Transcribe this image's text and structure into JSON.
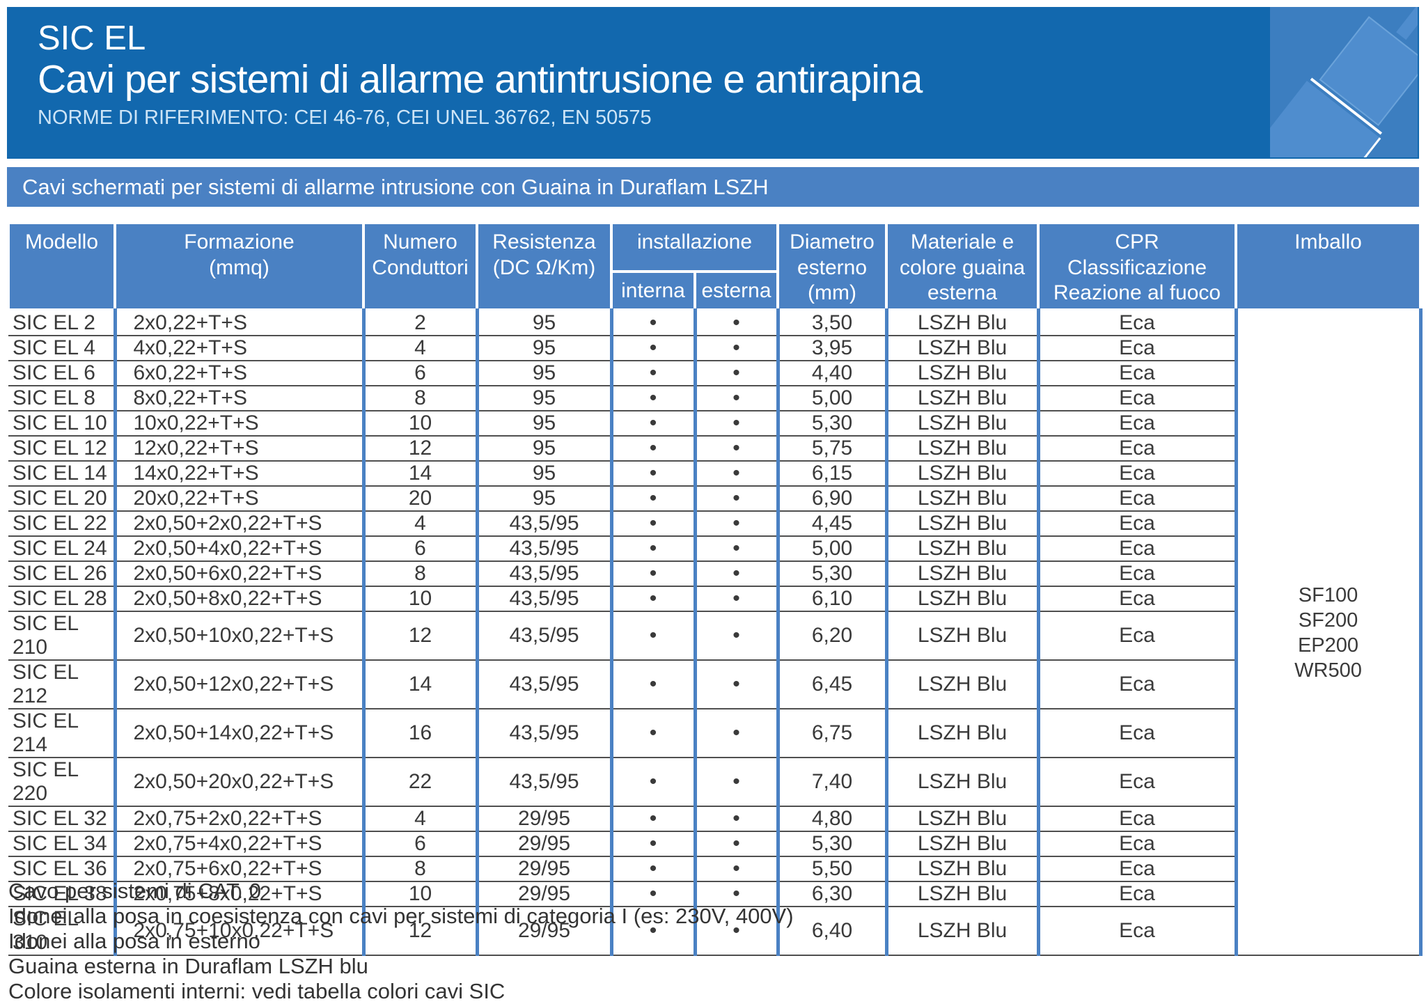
{
  "header": {
    "product": "SIC EL",
    "title": "Cavi per sistemi di allarme antintrusione e antirapina",
    "norms": "NORME DI RIFERIMENTO: CEI 46-76, CEI UNEL 36762, EN 50575"
  },
  "subheader": "Cavi schermati per sistemi di allarme intrusione con Guaina in Duraflam LSZH",
  "table": {
    "columns": {
      "modello": "Modello",
      "formazione": "Formazione\n(mmq)",
      "numero": "Numero\nConduttori",
      "resistenza": "Resistenza\n(DC Ω/Km)",
      "installazione": "installazione",
      "interna": "interna",
      "esterna": "esterna",
      "diametro": "Diametro\nesterno\n(mm)",
      "materiale": "Materiale e\ncolore guaina\nesterna",
      "cpr": "CPR\nClassificazione\nReazione al fuoco",
      "imballo": "Imballo"
    },
    "rows": [
      {
        "model": "SIC EL 2",
        "form": "2x0,22+T+S",
        "num": "2",
        "res": "95",
        "interna": "•",
        "esterna": "•",
        "diam": "3,50",
        "guaina": "LSZH Blu",
        "cpr": "Eca"
      },
      {
        "model": "SIC EL 4",
        "form": "4x0,22+T+S",
        "num": "4",
        "res": "95",
        "interna": "•",
        "esterna": "•",
        "diam": "3,95",
        "guaina": "LSZH Blu",
        "cpr": "Eca"
      },
      {
        "model": "SIC EL 6",
        "form": "6x0,22+T+S",
        "num": "6",
        "res": "95",
        "interna": "•",
        "esterna": "•",
        "diam": "4,40",
        "guaina": "LSZH Blu",
        "cpr": "Eca"
      },
      {
        "model": "SIC EL 8",
        "form": "8x0,22+T+S",
        "num": "8",
        "res": "95",
        "interna": "•",
        "esterna": "•",
        "diam": "5,00",
        "guaina": "LSZH Blu",
        "cpr": "Eca"
      },
      {
        "model": "SIC EL 10",
        "form": "10x0,22+T+S",
        "num": "10",
        "res": "95",
        "interna": "•",
        "esterna": "•",
        "diam": "5,30",
        "guaina": "LSZH Blu",
        "cpr": "Eca"
      },
      {
        "model": "SIC EL 12",
        "form": "12x0,22+T+S",
        "num": "12",
        "res": "95",
        "interna": "•",
        "esterna": "•",
        "diam": "5,75",
        "guaina": "LSZH Blu",
        "cpr": "Eca"
      },
      {
        "model": "SIC EL 14",
        "form": "14x0,22+T+S",
        "num": "14",
        "res": "95",
        "interna": "•",
        "esterna": "•",
        "diam": "6,15",
        "guaina": "LSZH Blu",
        "cpr": "Eca"
      },
      {
        "model": "SIC EL 20",
        "form": "20x0,22+T+S",
        "num": "20",
        "res": "95",
        "interna": "•",
        "esterna": "•",
        "diam": "6,90",
        "guaina": "LSZH Blu",
        "cpr": "Eca"
      },
      {
        "model": "SIC EL 22",
        "form": "2x0,50+2x0,22+T+S",
        "num": "4",
        "res": "43,5/95",
        "interna": "•",
        "esterna": "•",
        "diam": "4,45",
        "guaina": "LSZH Blu",
        "cpr": "Eca"
      },
      {
        "model": "SIC EL 24",
        "form": "2x0,50+4x0,22+T+S",
        "num": "6",
        "res": "43,5/95",
        "interna": "•",
        "esterna": "•",
        "diam": "5,00",
        "guaina": "LSZH Blu",
        "cpr": "Eca"
      },
      {
        "model": "SIC EL 26",
        "form": "2x0,50+6x0,22+T+S",
        "num": "8",
        "res": "43,5/95",
        "interna": "•",
        "esterna": "•",
        "diam": "5,30",
        "guaina": "LSZH Blu",
        "cpr": "Eca"
      },
      {
        "model": "SIC EL 28",
        "form": "2x0,50+8x0,22+T+S",
        "num": "10",
        "res": "43,5/95",
        "interna": "•",
        "esterna": "•",
        "diam": "6,10",
        "guaina": "LSZH Blu",
        "cpr": "Eca"
      },
      {
        "model": "SIC EL 210",
        "form": "2x0,50+10x0,22+T+S",
        "num": "12",
        "res": "43,5/95",
        "interna": "•",
        "esterna": "•",
        "diam": "6,20",
        "guaina": "LSZH Blu",
        "cpr": "Eca"
      },
      {
        "model": "SIC EL 212",
        "form": "2x0,50+12x0,22+T+S",
        "num": "14",
        "res": "43,5/95",
        "interna": "•",
        "esterna": "•",
        "diam": "6,45",
        "guaina": "LSZH Blu",
        "cpr": "Eca"
      },
      {
        "model": "SIC EL 214",
        "form": "2x0,50+14x0,22+T+S",
        "num": "16",
        "res": "43,5/95",
        "interna": "•",
        "esterna": "•",
        "diam": "6,75",
        "guaina": "LSZH Blu",
        "cpr": "Eca"
      },
      {
        "model": "SIC EL 220",
        "form": "2x0,50+20x0,22+T+S",
        "num": "22",
        "res": "43,5/95",
        "interna": "•",
        "esterna": "•",
        "diam": "7,40",
        "guaina": "LSZH Blu",
        "cpr": "Eca"
      },
      {
        "model": "SIC EL 32",
        "form": "2x0,75+2x0,22+T+S",
        "num": "4",
        "res": "29/95",
        "interna": "•",
        "esterna": "•",
        "diam": "4,80",
        "guaina": "LSZH Blu",
        "cpr": "Eca"
      },
      {
        "model": "SIC EL 34",
        "form": "2x0,75+4x0,22+T+S",
        "num": "6",
        "res": "29/95",
        "interna": "•",
        "esterna": "•",
        "diam": "5,30",
        "guaina": "LSZH Blu",
        "cpr": "Eca"
      },
      {
        "model": "SIC EL 36",
        "form": "2x0,75+6x0,22+T+S",
        "num": "8",
        "res": "29/95",
        "interna": "•",
        "esterna": "•",
        "diam": "5,50",
        "guaina": "LSZH Blu",
        "cpr": "Eca"
      },
      {
        "model": "SIC EL 38",
        "form": "2x0,75+8x0,22+T+S",
        "num": "10",
        "res": "29/95",
        "interna": "•",
        "esterna": "•",
        "diam": "6,30",
        "guaina": "LSZH Blu",
        "cpr": "Eca"
      },
      {
        "model": "SIC EL 310",
        "form": "2x0,75+10x0,22+T+S",
        "num": "12",
        "res": "29/95",
        "interna": "•",
        "esterna": "•",
        "diam": "6,40",
        "guaina": "LSZH Blu",
        "cpr": "Eca"
      }
    ],
    "imballo_text": "SF100\nSF200\nEP200\nWR500"
  },
  "notes": [
    "Cavo per sistemi di CAT. 0",
    "Idonei alla posa in coesistenza con cavi per sistemi di categoria I (es: 230V, 400V)",
    "Idonei alla posa in esterno",
    "Guaina esterna in Duraflam LSZH blu",
    "Colore isolamenti interni: vedi tabella colori cavi SIC"
  ],
  "colors": {
    "banner_blue": "#1268ae",
    "table_blue": "#4a81c3",
    "logo_blue": "#3c7ec0",
    "cable_blue": "#4f8dce",
    "row_line": "#4f4f4f",
    "body_text": "#3a3a3a",
    "norms_text": "#cde4f6"
  }
}
